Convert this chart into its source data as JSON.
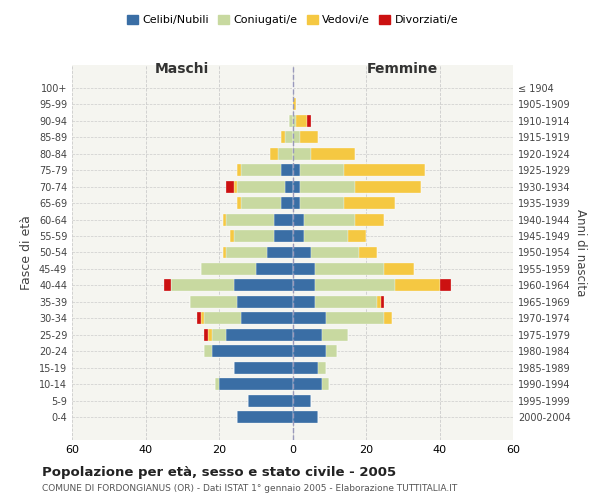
{
  "age_groups": [
    "0-4",
    "5-9",
    "10-14",
    "15-19",
    "20-24",
    "25-29",
    "30-34",
    "35-39",
    "40-44",
    "45-49",
    "50-54",
    "55-59",
    "60-64",
    "65-69",
    "70-74",
    "75-79",
    "80-84",
    "85-89",
    "90-94",
    "95-99",
    "100+"
  ],
  "birth_years": [
    "2000-2004",
    "1995-1999",
    "1990-1994",
    "1985-1989",
    "1980-1984",
    "1975-1979",
    "1970-1974",
    "1965-1969",
    "1960-1964",
    "1955-1959",
    "1950-1954",
    "1945-1949",
    "1940-1944",
    "1935-1939",
    "1930-1934",
    "1925-1929",
    "1920-1924",
    "1915-1919",
    "1910-1914",
    "1905-1909",
    "≤ 1904"
  ],
  "maschi": {
    "celibi": [
      15,
      12,
      20,
      16,
      22,
      18,
      14,
      15,
      16,
      10,
      7,
      5,
      5,
      3,
      2,
      3,
      0,
      0,
      0,
      0,
      0
    ],
    "coniugati": [
      0,
      0,
      1,
      0,
      2,
      4,
      10,
      13,
      17,
      15,
      11,
      11,
      13,
      11,
      13,
      11,
      4,
      2,
      1,
      0,
      0
    ],
    "vedovi": [
      0,
      0,
      0,
      0,
      0,
      1,
      1,
      0,
      0,
      0,
      1,
      1,
      1,
      1,
      1,
      1,
      2,
      1,
      0,
      0,
      0
    ],
    "divorziati": [
      0,
      0,
      0,
      0,
      0,
      1,
      1,
      0,
      2,
      0,
      0,
      0,
      0,
      0,
      2,
      0,
      0,
      0,
      0,
      0,
      0
    ]
  },
  "femmine": {
    "nubili": [
      7,
      5,
      8,
      7,
      9,
      8,
      9,
      6,
      6,
      6,
      5,
      3,
      3,
      2,
      2,
      2,
      0,
      0,
      0,
      0,
      0
    ],
    "coniugate": [
      0,
      0,
      2,
      2,
      3,
      7,
      16,
      17,
      22,
      19,
      13,
      12,
      14,
      12,
      15,
      12,
      5,
      2,
      1,
      0,
      0
    ],
    "vedove": [
      0,
      0,
      0,
      0,
      0,
      0,
      2,
      1,
      12,
      8,
      5,
      5,
      8,
      14,
      18,
      22,
      12,
      5,
      3,
      1,
      0
    ],
    "divorziate": [
      0,
      0,
      0,
      0,
      0,
      0,
      0,
      1,
      3,
      0,
      0,
      0,
      0,
      0,
      0,
      0,
      0,
      0,
      1,
      0,
      0
    ]
  },
  "colors": {
    "celibi": "#3a6ea5",
    "coniugati": "#c8d9a0",
    "vedovi": "#f5c842",
    "divorziati": "#cc1111"
  },
  "xlim": 60,
  "title": "Popolazione per età, sesso e stato civile - 2005",
  "subtitle": "COMUNE DI FORDONGIANUS (OR) - Dati ISTAT 1° gennaio 2005 - Elaborazione TUTTITALIA.IT",
  "ylabel_left": "Fasce di età",
  "ylabel_right": "Anni di nascita",
  "legend_labels": [
    "Celibi/Nubili",
    "Coniugati/e",
    "Vedovi/e",
    "Divorziati/e"
  ],
  "maschi_label": "Maschi",
  "femmine_label": "Femmine",
  "bg_color": "#f5f5f0",
  "grid_color": "#cccccc"
}
